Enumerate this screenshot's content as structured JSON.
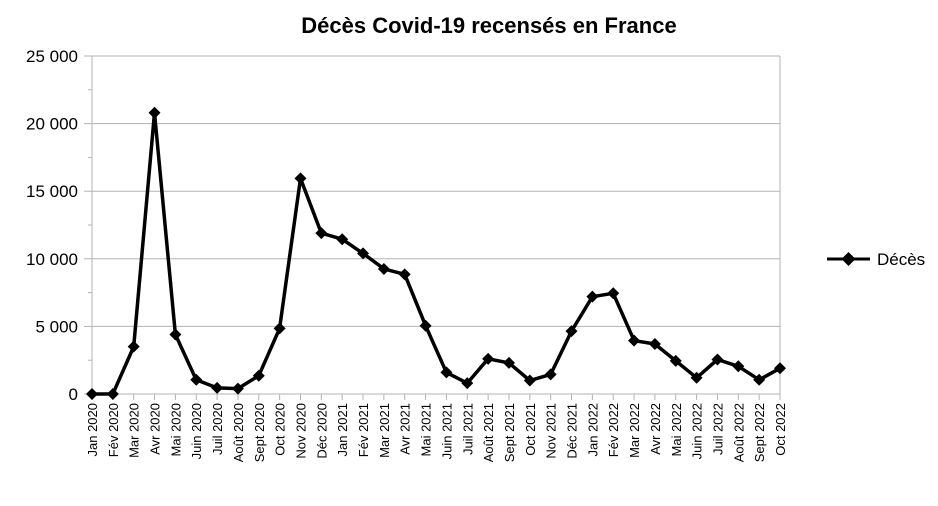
{
  "chart_data": {
    "type": "line",
    "title": "Décès Covid-19 recensés en France",
    "xlabel": "",
    "ylabel": "",
    "ylim": [
      0,
      25000
    ],
    "yticks": [
      0,
      5000,
      10000,
      15000,
      20000,
      25000
    ],
    "ytick_labels": [
      "0",
      "5 000",
      "10 000",
      "15 000",
      "20 000",
      "25 000"
    ],
    "grid": "horizontal",
    "legend_position": "right",
    "categories": [
      "Jan 2020",
      "Fév 2020",
      "Mar 2020",
      "Avr 2020",
      "Mai 2020",
      "Juin 2020",
      "Juil 2020",
      "Août 2020",
      "Sept 2020",
      "Oct 2020",
      "Nov 2020",
      "Déc 2020",
      "Jan 2021",
      "Fév 2021",
      "Mar 2021",
      "Avr 2021",
      "Mai 2021",
      "Juin 2021",
      "Juil 2021",
      "Août 2021",
      "Sept 2021",
      "Oct 2021",
      "Nov 2021",
      "Déc 2021",
      "Jan 2022",
      "Fév 2022",
      "Mar 2022",
      "Avr 2022",
      "Mai 2022",
      "Juin 2022",
      "Juil 2022",
      "Août 2022",
      "Sept 2022",
      "Oct 2022"
    ],
    "series": [
      {
        "name": "Décès",
        "color": "#000000",
        "marker": "diamond",
        "values": [
          0,
          0,
          3500,
          20800,
          4400,
          1050,
          450,
          400,
          1350,
          4850,
          15950,
          11900,
          11450,
          10400,
          9250,
          8850,
          5050,
          1600,
          800,
          2600,
          2300,
          1000,
          1450,
          4650,
          7200,
          7450,
          3950,
          3700,
          2450,
          1200,
          2550,
          2050,
          1050,
          1900
        ]
      }
    ]
  }
}
